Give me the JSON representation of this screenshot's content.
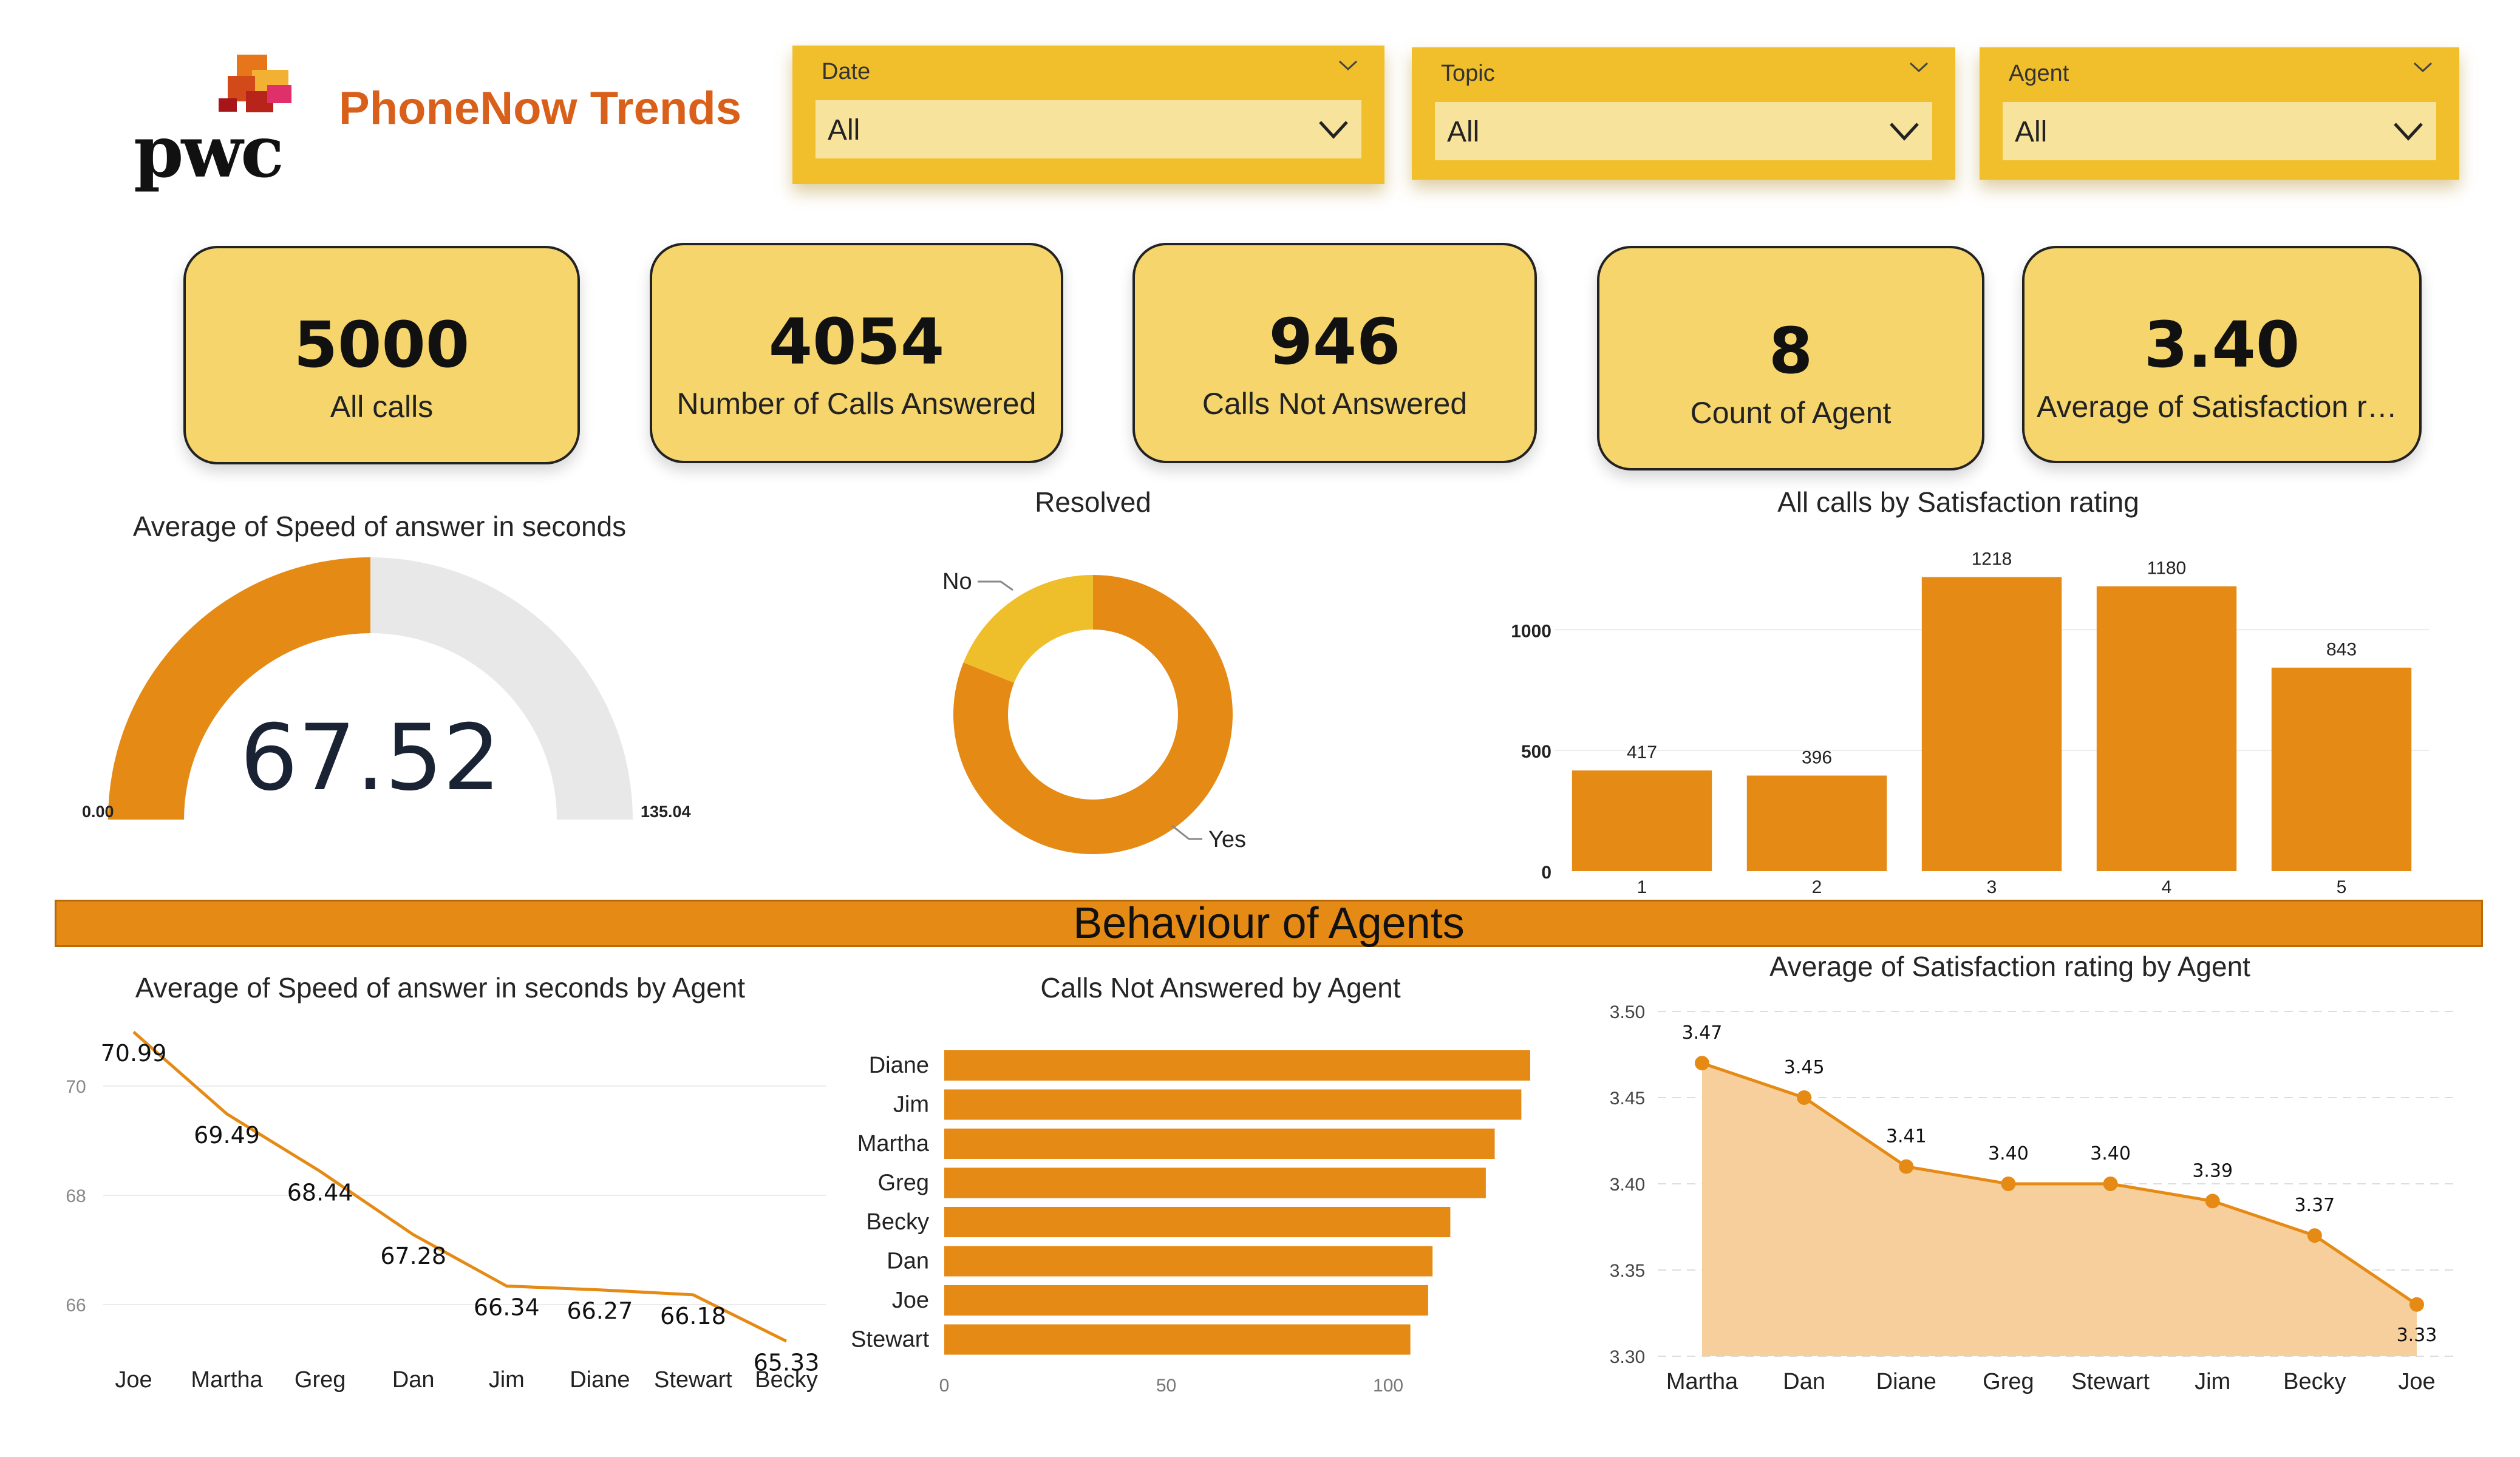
{
  "header": {
    "logo_text": "pwc",
    "title": "PhoneNow Trends"
  },
  "slicers": [
    {
      "label": "Date",
      "value": "All"
    },
    {
      "label": "Topic",
      "value": "All"
    },
    {
      "label": "Agent",
      "value": "All"
    }
  ],
  "kpis": [
    {
      "value": "5000",
      "label": "All calls"
    },
    {
      "value": "4054",
      "label": "Number of Calls Answered"
    },
    {
      "value": "946",
      "label": "Calls Not Answered"
    },
    {
      "value": "8",
      "label": "Count of Agent"
    },
    {
      "value": "3.40",
      "label": "Average of Satisfaction rati..."
    }
  ],
  "colors": {
    "accent": "#e58a14",
    "gauge_track": "#e8e8e8",
    "donut_no": "#efbe2b",
    "area_fill": "#f6cf9d",
    "title": "#d9601a",
    "slicer": "#f0bf2b",
    "kpi": "#f5d56c"
  },
  "banner": {
    "title": "Behaviour of Agents"
  },
  "chart_data": [
    {
      "id": "gauge",
      "type": "gauge",
      "title": "Average of Speed of answer in seconds",
      "value": 67.52,
      "value_label": "67.52",
      "min": 0,
      "max": 135.04,
      "min_label": "0.00",
      "max_label": "135.04"
    },
    {
      "id": "donut",
      "type": "pie",
      "title": "Resolved",
      "slices": [
        {
          "label": "Yes",
          "value": 4054
        },
        {
          "label": "No",
          "value": 946
        }
      ]
    },
    {
      "id": "rating_bars",
      "type": "bar",
      "title": "All calls by Satisfaction rating",
      "categories": [
        "1",
        "2",
        "3",
        "4",
        "5"
      ],
      "values": [
        417,
        396,
        1218,
        1180,
        843
      ],
      "ylim": [
        0,
        1300
      ],
      "yticks": [
        0,
        500,
        1000
      ]
    },
    {
      "id": "speed_line",
      "type": "line",
      "title": "Average of Speed of answer in seconds by Agent",
      "categories": [
        "Joe",
        "Martha",
        "Greg",
        "Dan",
        "Jim",
        "Diane",
        "Stewart",
        "Becky"
      ],
      "values": [
        70.99,
        69.49,
        68.44,
        67.28,
        66.34,
        66.27,
        66.18,
        65.33
      ],
      "ylim": [
        65.1,
        71.1
      ],
      "yticks": [
        66,
        68,
        70
      ]
    },
    {
      "id": "not_answered_bars",
      "type": "bar",
      "orientation": "horizontal",
      "title": "Calls Not Answered by Agent",
      "categories": [
        "Diane",
        "Jim",
        "Martha",
        "Greg",
        "Becky",
        "Dan",
        "Joe",
        "Stewart"
      ],
      "values": [
        132,
        130,
        124,
        122,
        114,
        110,
        109,
        105
      ],
      "xlim": [
        0,
        132
      ],
      "xticks": [
        0,
        50,
        100
      ]
    },
    {
      "id": "satisfaction_area",
      "type": "area",
      "title": "Average of Satisfaction rating by Agent",
      "categories": [
        "Martha",
        "Dan",
        "Diane",
        "Greg",
        "Stewart",
        "Jim",
        "Becky",
        "Joe"
      ],
      "values": [
        3.47,
        3.45,
        3.41,
        3.4,
        3.4,
        3.39,
        3.37,
        3.33
      ],
      "value_labels": [
        "3.47",
        "3.45",
        "3.41",
        "3.40",
        "3.40",
        "3.39",
        "3.37",
        "3.33"
      ],
      "ylim": [
        3.3,
        3.5
      ],
      "yticks": [
        "3.30",
        "3.35",
        "3.40",
        "3.45",
        "3.50"
      ]
    }
  ]
}
